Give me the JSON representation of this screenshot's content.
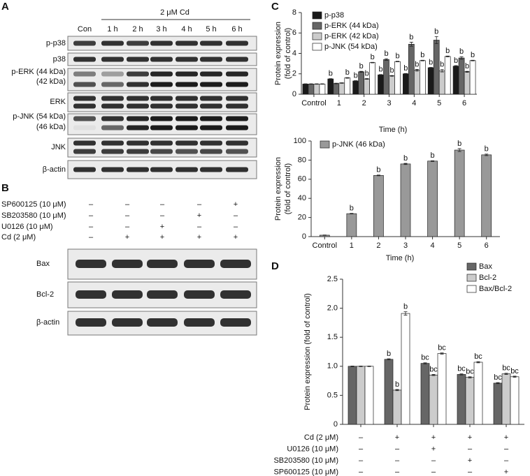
{
  "panel_labels": [
    "A",
    "B",
    "C",
    "D"
  ],
  "blot_a": {
    "header": "2 μM Cd",
    "lanes": [
      "Con",
      "1 h",
      "2 h",
      "3 h",
      "4 h",
      "5 h",
      "6 h"
    ],
    "rows": [
      [
        "p-p38"
      ],
      [
        "p38"
      ],
      [
        "p-ERK (44 kDa)",
        "(42 kDa)"
      ],
      [
        "ERK"
      ],
      [
        "p-JNK (54 kDa)",
        "(46 kDa)"
      ],
      [
        "JNK"
      ],
      [
        "β-actin"
      ]
    ]
  },
  "blot_b": {
    "treatments": [
      {
        "label": "SP600125 (10 μM)",
        "signs": [
          "–",
          "–",
          "–",
          "–",
          "+"
        ]
      },
      {
        "label": "SB203580 (10 μM)",
        "signs": [
          "–",
          "–",
          "–",
          "+",
          "–"
        ]
      },
      {
        "label": "U0126 (10 μM)",
        "signs": [
          "–",
          "–",
          "+",
          "–",
          "–"
        ]
      },
      {
        "label": "Cd (2 μM)",
        "signs": [
          "–",
          "+",
          "+",
          "+",
          "+"
        ]
      }
    ],
    "rows": [
      "Bax",
      "Bcl-2",
      "β-actin"
    ]
  },
  "chart_data": [
    {
      "type": "bar",
      "ylabel": [
        "Protein expression",
        "(fold of control)"
      ],
      "xlabel": "Time (h)",
      "categories": [
        "Control",
        "1",
        "2",
        "3",
        "4",
        "5",
        "6"
      ],
      "ylim": [
        0,
        8
      ],
      "yticks": [
        0,
        2,
        4,
        6,
        8
      ],
      "series": [
        {
          "name": "p-p38",
          "color": "#1a1a1a",
          "values": [
            1,
            1.5,
            1.3,
            1.9,
            2.0,
            2.6,
            2.75
          ],
          "errors": [
            0.02,
            0.03,
            0.03,
            0.03,
            0.03,
            0.03,
            0.05
          ],
          "annotations": [
            null,
            "b",
            "b",
            "b",
            "b",
            "b",
            "b"
          ]
        },
        {
          "name": "p-ERK (44 kDa)",
          "color": "#666666",
          "values": [
            1,
            1.05,
            2.2,
            3.4,
            4.9,
            5.3,
            3.55
          ],
          "errors": [
            0.02,
            0.03,
            0.05,
            0.08,
            0.2,
            0.35,
            0.12
          ],
          "annotations": [
            null,
            null,
            "b",
            "b",
            "b",
            "b",
            "b"
          ]
        },
        {
          "name": "p-ERK (42 kDa)",
          "color": "#cccccc",
          "values": [
            1,
            1.1,
            1.5,
            1.8,
            2.35,
            2.3,
            2.2
          ],
          "errors": [
            0.02,
            0.03,
            0.04,
            0.04,
            0.08,
            0.12,
            0.05
          ],
          "annotations": [
            null,
            null,
            "b",
            "b",
            "b",
            "b",
            "b"
          ]
        },
        {
          "name": "p-JNK (54 kDa)",
          "color": "#ffffff",
          "values": [
            1,
            1.6,
            3.1,
            3.2,
            3.3,
            3.7,
            3.3
          ],
          "errors": [
            0.02,
            0.03,
            0.03,
            0.03,
            0.03,
            0.04,
            0.03
          ],
          "annotations": [
            null,
            "b",
            "b",
            "b",
            "b",
            "b",
            "b"
          ]
        }
      ]
    },
    {
      "type": "bar",
      "ylabel": [
        "Protein expression",
        "(fold of control)"
      ],
      "xlabel": "Time (h)",
      "categories": [
        "Control",
        "1",
        "2",
        "3",
        "4",
        "5",
        "6"
      ],
      "ylim": [
        0,
        100
      ],
      "yticks": [
        0,
        20,
        40,
        60,
        80,
        100
      ],
      "series": [
        {
          "name": "p-JNK (46 kDa)",
          "color": "#999999",
          "values": [
            1.5,
            24,
            64,
            76,
            79,
            90.5,
            85.5
          ],
          "errors": [
            0.2,
            0.3,
            0.4,
            0.6,
            0.4,
            1.5,
            0.8
          ],
          "annotations": [
            null,
            "b",
            "b",
            "b",
            "b",
            "b",
            "b"
          ]
        }
      ]
    },
    {
      "type": "bar",
      "ylabel": [
        "Protein expression (fold of control)"
      ],
      "ylim": [
        0,
        2.5
      ],
      "yticks": [
        0,
        0.5,
        {
          "value": 1,
          "label": "1.0"
        },
        1.5,
        {
          "value": 2,
          "label": "2.0"
        },
        2.5
      ],
      "series": [
        {
          "name": "Bax",
          "color": "#666666",
          "values": [
            1.0,
            1.12,
            1.05,
            0.86,
            0.71
          ],
          "errors": [
            0.005,
            0.01,
            0.01,
            0.01,
            0.01
          ],
          "annotations": [
            null,
            "b",
            "bc",
            "bc",
            "bc"
          ]
        },
        {
          "name": "Bcl-2",
          "color": "#cccccc",
          "values": [
            1.0,
            0.59,
            0.85,
            0.81,
            0.87
          ],
          "errors": [
            0.005,
            0.01,
            0.01,
            0.01,
            0.01
          ],
          "annotations": [
            null,
            "b",
            "bc",
            "bc",
            "bc"
          ]
        },
        {
          "name": "Bax/Bcl-2",
          "color": "#ffffff",
          "values": [
            1.0,
            1.91,
            1.22,
            1.07,
            0.82
          ],
          "errors": [
            0.005,
            0.03,
            0.01,
            0.01,
            0.01
          ],
          "annotations": [
            null,
            "b",
            "bc",
            "bc",
            "bc"
          ]
        }
      ],
      "treatments": [
        {
          "label": "Cd (2 μM)",
          "signs": [
            "–",
            "+",
            "+",
            "+",
            "+"
          ]
        },
        {
          "label": "U0126 (10 μM)",
          "signs": [
            "–",
            "–",
            "+",
            "–",
            "–"
          ]
        },
        {
          "label": "SB203580 (10 μM)",
          "signs": [
            "–",
            "–",
            "–",
            "+",
            "–"
          ]
        },
        {
          "label": "SP600125 (10 μM)",
          "signs": [
            "–",
            "–",
            "–",
            "–",
            "+"
          ]
        }
      ]
    }
  ]
}
